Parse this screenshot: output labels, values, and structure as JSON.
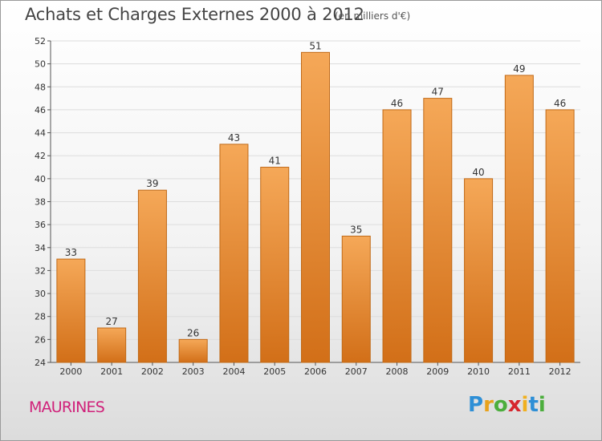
{
  "header": {
    "title": "Achats et Charges Externes 2000 à 2012",
    "subtitle": "(en milliers d'€)"
  },
  "footer": {
    "commune": "MAURINES",
    "logo_letters": [
      "P",
      "r",
      "o",
      "x",
      "i",
      "t",
      "i"
    ],
    "logo_colors": [
      "#2e8fd6",
      "#e8a21c",
      "#4cae3d",
      "#d6262d",
      "#f0b020",
      "#2e8fd6",
      "#4cae3d"
    ]
  },
  "colors": {
    "bar_top": "#f5a858",
    "bar_bottom": "#d26f18",
    "bar_stroke": "#c06a18",
    "grid": "#dddddd",
    "axis": "#555555",
    "text": "#333333"
  },
  "chart_data": {
    "type": "bar",
    "title": "Achats et Charges Externes 2000 à 2012",
    "categories": [
      "2000",
      "2001",
      "2002",
      "2003",
      "2004",
      "2005",
      "2006",
      "2007",
      "2008",
      "2009",
      "2010",
      "2011",
      "2012"
    ],
    "values": [
      33,
      27,
      39,
      26,
      43,
      41,
      51,
      35,
      46,
      47,
      40,
      49,
      46
    ],
    "ylim": [
      24,
      52
    ],
    "yticks": [
      24,
      26,
      28,
      30,
      32,
      34,
      36,
      38,
      40,
      42,
      44,
      46,
      48,
      50,
      52
    ],
    "grid": true,
    "data_labels": true
  }
}
